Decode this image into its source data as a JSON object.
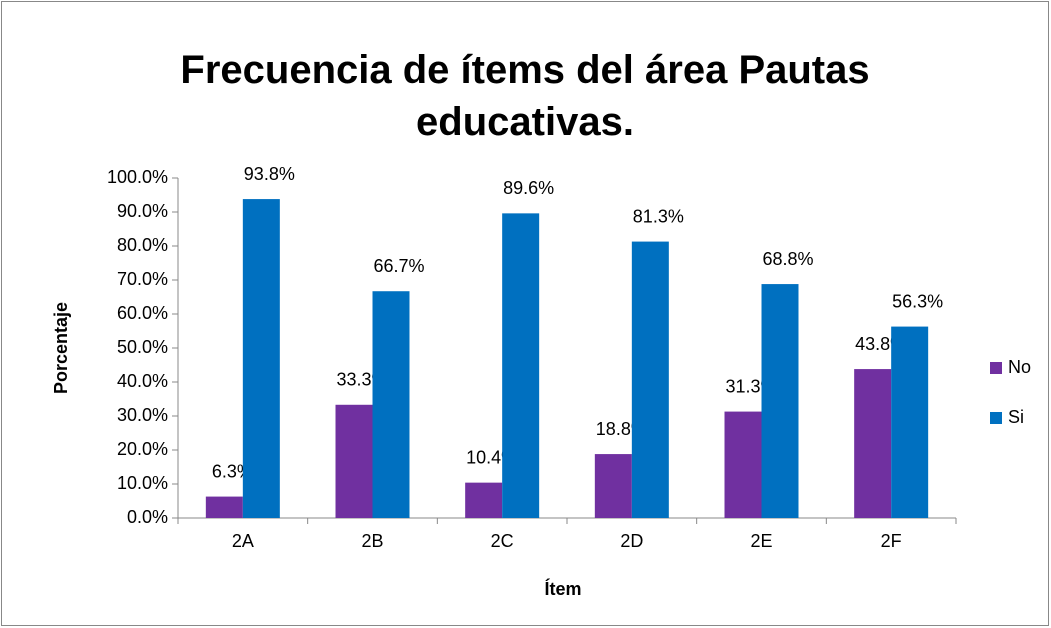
{
  "chart_data": {
    "type": "bar",
    "title": "Frecuencia de ítems del área Pautas educativas.",
    "x_label": "Ítem",
    "y_label": "Porcentaje",
    "categories": [
      "2A",
      "2B",
      "2C",
      "2D",
      "2E",
      "2F"
    ],
    "series": [
      {
        "name": "No",
        "color": "#7030a0",
        "values": [
          6.3,
          33.3,
          10.4,
          18.8,
          31.3,
          43.8
        ],
        "value_labels": [
          "6.3%",
          "33.3%",
          "10.4%",
          "18.8%",
          "31.3%",
          "43.8%"
        ]
      },
      {
        "name": "Si",
        "color": "#0070c0",
        "values": [
          93.8,
          66.7,
          89.6,
          81.3,
          68.8,
          56.3
        ],
        "value_labels": [
          "93.8%",
          "66.7%",
          "89.6%",
          "81.3%",
          "68.8%",
          "56.3%"
        ]
      }
    ],
    "ylim": [
      0,
      100
    ],
    "yticks": [
      {
        "value": 0,
        "label": "0.0%"
      },
      {
        "value": 10,
        "label": "10.0%"
      },
      {
        "value": 20,
        "label": "20.0%"
      },
      {
        "value": 30,
        "label": "30.0%"
      },
      {
        "value": 40,
        "label": "40.0%"
      },
      {
        "value": 50,
        "label": "50.0%"
      },
      {
        "value": 60,
        "label": "60.0%"
      },
      {
        "value": 70,
        "label": "70.0%"
      },
      {
        "value": 80,
        "label": "80.0%"
      },
      {
        "value": 90,
        "label": "90.0%"
      },
      {
        "value": 100,
        "label": "100.0%"
      }
    ],
    "grid": false,
    "legend": "right"
  }
}
